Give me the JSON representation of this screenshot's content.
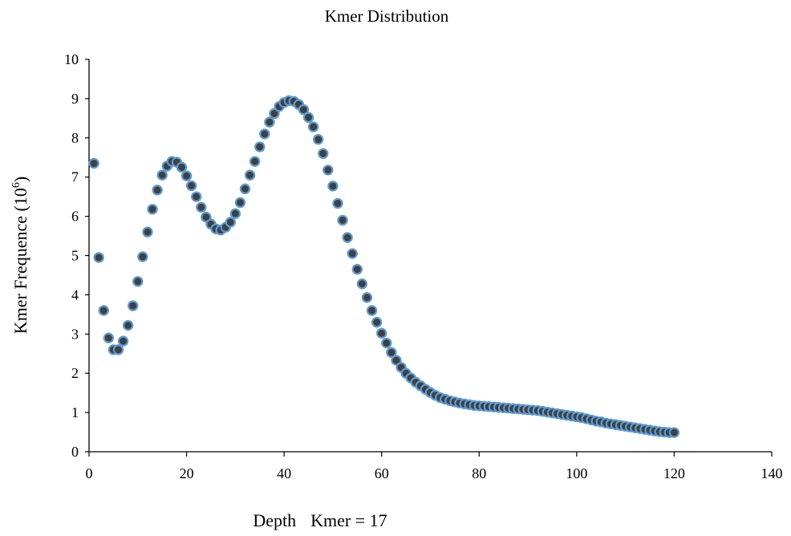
{
  "chart_data": {
    "type": "scatter",
    "title": "Kmer Distribution",
    "xlabel": "Depth",
    "xlabel_note": "Kmer = 17",
    "ylabel_main": "Kmer Frequence (10",
    "ylabel_exp": "6",
    "ylabel_close": ")",
    "xlim": [
      0,
      140
    ],
    "ylim": [
      0,
      10
    ],
    "xticks": [
      0,
      20,
      40,
      60,
      80,
      100,
      120,
      140
    ],
    "yticks": [
      0,
      1,
      2,
      3,
      4,
      5,
      6,
      7,
      8,
      9,
      10
    ],
    "grid": false,
    "marker_fill": "#404040",
    "marker_edge": "#5b9bd5",
    "series": [
      {
        "x": [
          1,
          2,
          3,
          4,
          5,
          6,
          7,
          8,
          9,
          10,
          11,
          12,
          13,
          14,
          15,
          16,
          17,
          18,
          19,
          20,
          21,
          22,
          23,
          24,
          25,
          26,
          27,
          28,
          29,
          30,
          31,
          32,
          33,
          34,
          35,
          36,
          37,
          38,
          39,
          40,
          41,
          42,
          43,
          44,
          45,
          46,
          47,
          48,
          49,
          50,
          51,
          52,
          53,
          54,
          55,
          56,
          57,
          58,
          59,
          60,
          61,
          62,
          63,
          64,
          65,
          66,
          67,
          68,
          69,
          70,
          71,
          72,
          73,
          74,
          75,
          76,
          77,
          78,
          79,
          80,
          81,
          82,
          83,
          84,
          85,
          86,
          87,
          88,
          89,
          90,
          91,
          92,
          93,
          94,
          95,
          96,
          97,
          98,
          99,
          100,
          101,
          102,
          103,
          104,
          105,
          106,
          107,
          108,
          109,
          110,
          111,
          112,
          113,
          114,
          115,
          116,
          117,
          118,
          119,
          120
        ],
        "y": [
          7.35,
          4.95,
          3.6,
          2.9,
          2.6,
          2.6,
          2.82,
          3.22,
          3.72,
          4.34,
          4.97,
          5.6,
          6.18,
          6.67,
          7.05,
          7.28,
          7.4,
          7.38,
          7.25,
          7.03,
          6.78,
          6.5,
          6.23,
          5.98,
          5.8,
          5.68,
          5.65,
          5.72,
          5.85,
          6.07,
          6.35,
          6.7,
          7.05,
          7.4,
          7.77,
          8.1,
          8.4,
          8.62,
          8.8,
          8.9,
          8.95,
          8.93,
          8.85,
          8.72,
          8.52,
          8.28,
          7.96,
          7.6,
          7.18,
          6.77,
          6.33,
          5.9,
          5.46,
          5.05,
          4.65,
          4.28,
          3.93,
          3.6,
          3.3,
          3.02,
          2.77,
          2.53,
          2.33,
          2.15,
          2.0,
          1.88,
          1.77,
          1.68,
          1.59,
          1.51,
          1.44,
          1.38,
          1.34,
          1.3,
          1.27,
          1.24,
          1.22,
          1.2,
          1.18,
          1.17,
          1.16,
          1.15,
          1.14,
          1.13,
          1.12,
          1.11,
          1.1,
          1.09,
          1.08,
          1.07,
          1.06,
          1.05,
          1.03,
          1.01,
          0.99,
          0.97,
          0.95,
          0.93,
          0.91,
          0.89,
          0.87,
          0.84,
          0.81,
          0.78,
          0.76,
          0.73,
          0.71,
          0.69,
          0.67,
          0.65,
          0.63,
          0.61,
          0.59,
          0.57,
          0.55,
          0.53,
          0.51,
          0.5,
          0.49,
          0.49
        ]
      }
    ]
  }
}
